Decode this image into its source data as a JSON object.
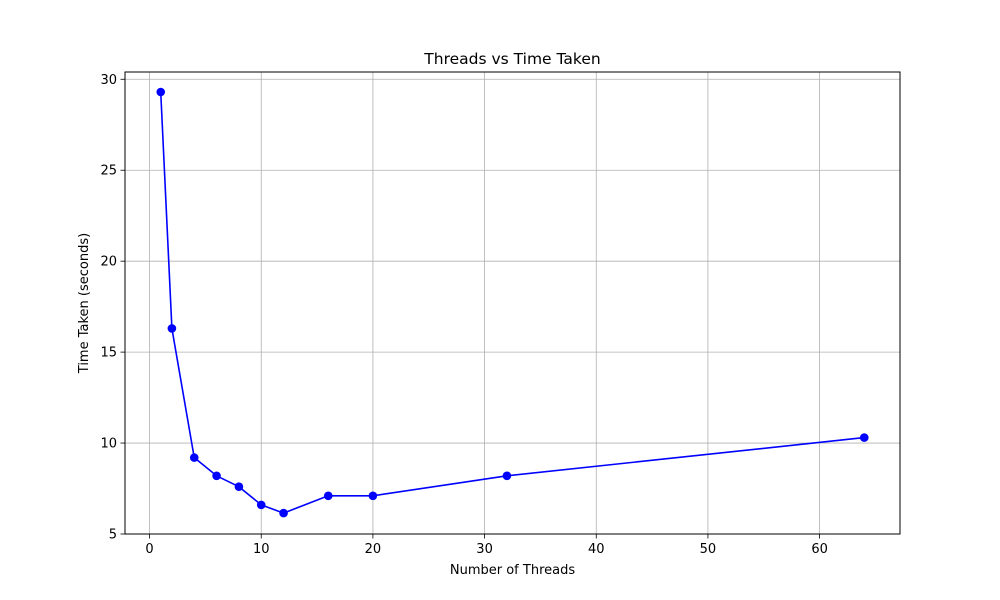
{
  "chart_data": {
    "type": "line",
    "title": "Threads vs Time Taken",
    "xlabel": "Number of Threads",
    "ylabel": "Time Taken (seconds)",
    "xlim": [
      -2.2,
      67.2
    ],
    "ylim": [
      5.0,
      30.4
    ],
    "x_ticks": [
      0,
      10,
      20,
      30,
      40,
      50,
      60
    ],
    "x_tick_labels": [
      "0",
      "10",
      "20",
      "30",
      "40",
      "50",
      "60"
    ],
    "y_ticks": [
      5,
      10,
      15,
      20,
      25,
      30
    ],
    "y_tick_labels": [
      "5",
      "10",
      "15",
      "20",
      "25",
      "30"
    ],
    "grid": true,
    "series": [
      {
        "color": "#0000ff",
        "marker": "circle",
        "x": [
          1,
          2,
          4,
          6,
          8,
          10,
          12,
          16,
          20,
          32,
          64
        ],
        "y": [
          29.3,
          16.3,
          9.2,
          8.2,
          7.6,
          6.6,
          6.15,
          7.1,
          7.1,
          8.2,
          10.3
        ]
      }
    ]
  }
}
